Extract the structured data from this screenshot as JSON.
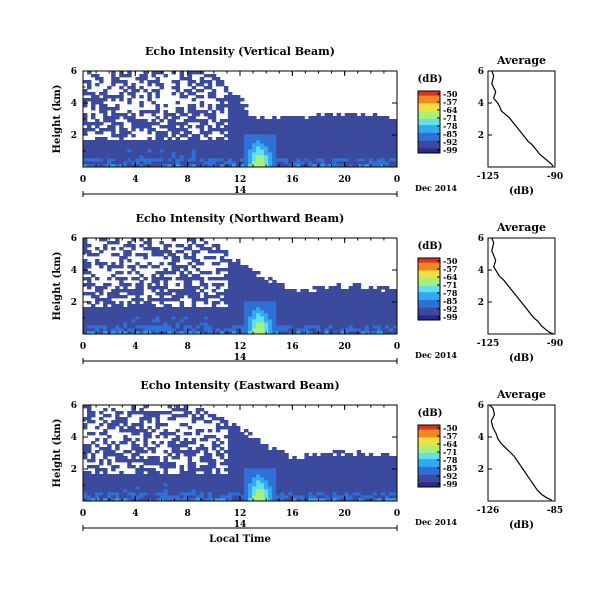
{
  "colors": {
    "background": "#3b4a9c",
    "colormap": [
      "#2a2a8a",
      "#3b4a9c",
      "#2f6fd8",
      "#33a8f0",
      "#5fe0f0",
      "#a8f07a",
      "#f0e040",
      "#f08a20",
      "#e03020"
    ]
  },
  "shared": {
    "date_label": "Dec 2014",
    "day_label": "14",
    "xlabel": "Local Time",
    "x_ticks": [
      "0",
      "4",
      "8",
      "12",
      "16",
      "20",
      "0"
    ],
    "y_ticks": [
      "6",
      "4",
      "2"
    ],
    "ylabel": "Height (km)",
    "avg_title": "Average",
    "avg_xlabel": "(dB)",
    "avg_y_ticks": [
      "6",
      "4",
      "2"
    ],
    "cbar_unit": "(dB)",
    "cbar_ticks": [
      "-50",
      "-57",
      "-64",
      "-71",
      "-78",
      "-85",
      "-92",
      "-99"
    ]
  },
  "chart_data": [
    {
      "type": "heatmap",
      "title": "Echo Intensity (Vertical Beam)",
      "xlabel": "",
      "ylabel": "Height (km)",
      "xlim": [
        0,
        24
      ],
      "ylim": [
        0,
        6
      ],
      "colorbar": {
        "label": "(dB)",
        "range": [
          -99,
          -50
        ],
        "ticks": [
          -50,
          -57,
          -64,
          -71,
          -78,
          -85,
          -92,
          -99
        ]
      },
      "cloud_top_km": [
        [
          0,
          6
        ],
        [
          2,
          6
        ],
        [
          4,
          6
        ],
        [
          6,
          6
        ],
        [
          8,
          6
        ],
        [
          10,
          5.5
        ],
        [
          12,
          4.2
        ],
        [
          13,
          2.9
        ],
        [
          14,
          3.0
        ],
        [
          16,
          3.0
        ],
        [
          18,
          3.1
        ],
        [
          20,
          3.2
        ],
        [
          22,
          3.1
        ],
        [
          24,
          3.0
        ]
      ],
      "peak_echo_time_h": 13.5
    },
    {
      "type": "heatmap",
      "title": "Echo Intensity (Northward Beam)",
      "xlabel": "",
      "ylabel": "Height (km)",
      "xlim": [
        0,
        24
      ],
      "ylim": [
        0,
        6
      ],
      "colorbar": {
        "label": "(dB)",
        "range": [
          -99,
          -50
        ],
        "ticks": [
          -50,
          -57,
          -64,
          -71,
          -78,
          -85,
          -92,
          -99
        ]
      },
      "cloud_top_km": [
        [
          0,
          6
        ],
        [
          2,
          6
        ],
        [
          4,
          6
        ],
        [
          6,
          6
        ],
        [
          8,
          6
        ],
        [
          10,
          5.5
        ],
        [
          12,
          4.3
        ],
        [
          13,
          3.8
        ],
        [
          14,
          3.4
        ],
        [
          16,
          2.6
        ],
        [
          18,
          2.7
        ],
        [
          20,
          2.9
        ],
        [
          22,
          2.8
        ],
        [
          24,
          2.6
        ]
      ],
      "peak_echo_time_h": 13.5
    },
    {
      "type": "heatmap",
      "title": "Echo Intensity (Eastward Beam)",
      "xlabel": "Local Time",
      "ylabel": "Height (km)",
      "xlim": [
        0,
        24
      ],
      "ylim": [
        0,
        6
      ],
      "colorbar": {
        "label": "(dB)",
        "range": [
          -99,
          -50
        ],
        "ticks": [
          -50,
          -57,
          -64,
          -71,
          -78,
          -85,
          -92,
          -99
        ]
      },
      "cloud_top_km": [
        [
          0,
          6
        ],
        [
          2,
          6
        ],
        [
          4,
          6
        ],
        [
          6,
          6
        ],
        [
          8,
          6
        ],
        [
          10,
          5.2
        ],
        [
          12,
          4.4
        ],
        [
          13,
          3.9
        ],
        [
          14,
          3.4
        ],
        [
          16,
          2.6
        ],
        [
          18,
          2.8
        ],
        [
          20,
          2.9
        ],
        [
          22,
          2.8
        ],
        [
          24,
          2.7
        ]
      ],
      "peak_echo_time_h": 13.5
    },
    {
      "type": "line",
      "title": "Average",
      "xlabel": "(dB)",
      "ylabel": "",
      "xlim": [
        -125,
        -90
      ],
      "x_ticks": [
        "-125",
        "-90"
      ],
      "ylim": [
        0,
        6
      ],
      "series": [
        {
          "x": [
            -123,
            -122,
            -123,
            -121,
            -122,
            -120,
            -119,
            -118,
            -116,
            -114,
            -112,
            -110,
            -108,
            -106,
            -104,
            -102,
            -100,
            -98,
            -96,
            -94,
            -92,
            -91
          ],
          "y": [
            6,
            5.7,
            5.2,
            4.7,
            4.3,
            4.0,
            3.8,
            3.5,
            3.3,
            3.1,
            2.8,
            2.5,
            2.2,
            1.9,
            1.6,
            1.4,
            1.1,
            0.8,
            0.6,
            0.4,
            0.2,
            0.05
          ]
        }
      ]
    },
    {
      "type": "line",
      "title": "Average",
      "xlabel": "(dB)",
      "ylabel": "",
      "xlim": [
        -125,
        -90
      ],
      "x_ticks": [
        "-125",
        "-90"
      ],
      "ylim": [
        0,
        6
      ],
      "series": [
        {
          "x": [
            -123,
            -122,
            -123,
            -121,
            -122,
            -120,
            -119,
            -117,
            -115,
            -113,
            -111,
            -109,
            -107,
            -105,
            -103,
            -101,
            -99,
            -97,
            -95,
            -93,
            -91
          ],
          "y": [
            6,
            5.7,
            5.2,
            4.6,
            4.2,
            3.8,
            3.6,
            3.4,
            3.1,
            2.8,
            2.5,
            2.2,
            1.9,
            1.6,
            1.3,
            1.0,
            0.8,
            0.5,
            0.3,
            0.1,
            0.02
          ]
        }
      ]
    },
    {
      "type": "line",
      "title": "Average",
      "xlabel": "(dB)",
      "ylabel": "",
      "xlim": [
        -126,
        -85
      ],
      "x_ticks": [
        "-126",
        "-85"
      ],
      "ylim": [
        0,
        6
      ],
      "series": [
        {
          "x": [
            -125,
            -123,
            -122,
            -124,
            -123,
            -121,
            -120,
            -118,
            -116,
            -114,
            -112,
            -110,
            -108,
            -106,
            -104,
            -102,
            -100,
            -98,
            -96,
            -93,
            -90,
            -87
          ],
          "y": [
            6,
            5.8,
            5.4,
            5.0,
            4.6,
            4.2,
            3.9,
            3.6,
            3.4,
            3.2,
            3.0,
            2.8,
            2.5,
            2.2,
            1.9,
            1.6,
            1.3,
            1.0,
            0.7,
            0.4,
            0.2,
            0.05
          ]
        }
      ]
    }
  ]
}
